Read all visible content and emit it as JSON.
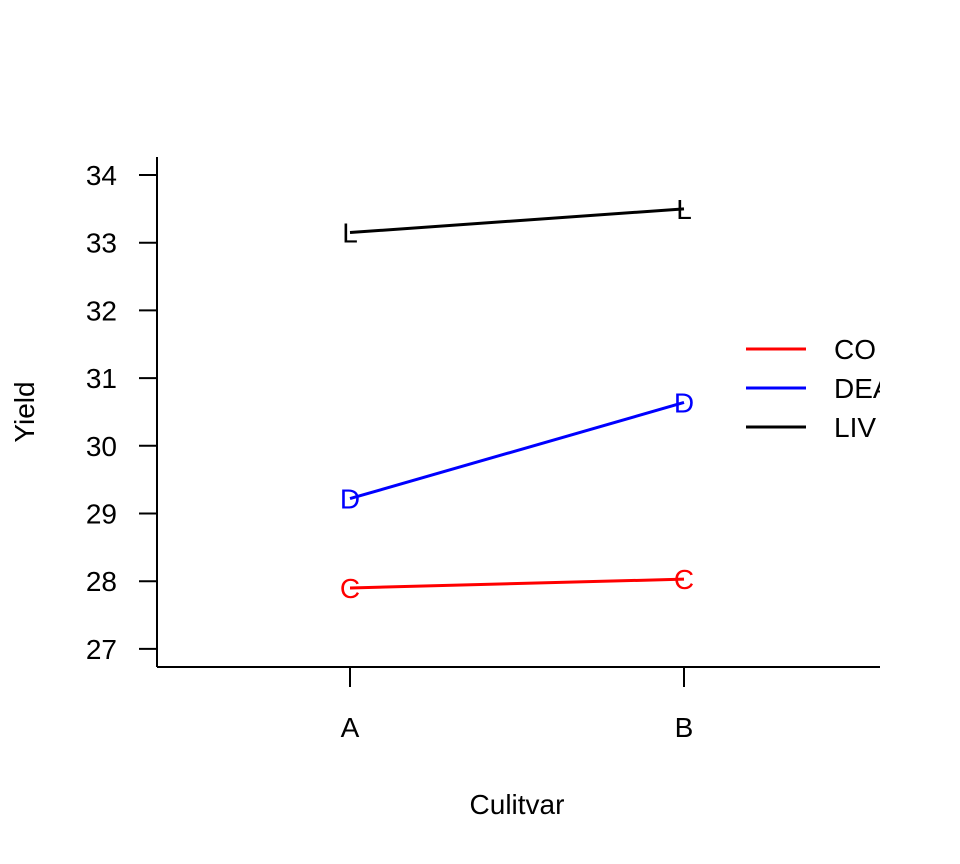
{
  "chart_data": {
    "type": "line",
    "title": "",
    "xlabel": "Culitvar",
    "ylabel": "Yield",
    "categories": [
      "A",
      "B"
    ],
    "yticks": [
      27,
      28,
      29,
      30,
      31,
      32,
      33,
      34
    ],
    "ylim": [
      26.7,
      34.3
    ],
    "legend_position": "right",
    "series": [
      {
        "name": "CO",
        "marker": "C",
        "color": "#ff0000",
        "values": [
          27.9,
          28.03
        ]
      },
      {
        "name": "DEA",
        "marker": "D",
        "color": "#0000ff",
        "values": [
          29.22,
          30.64
        ]
      },
      {
        "name": "LIV",
        "marker": "L",
        "color": "#000000",
        "values": [
          33.15,
          33.5
        ]
      }
    ]
  }
}
